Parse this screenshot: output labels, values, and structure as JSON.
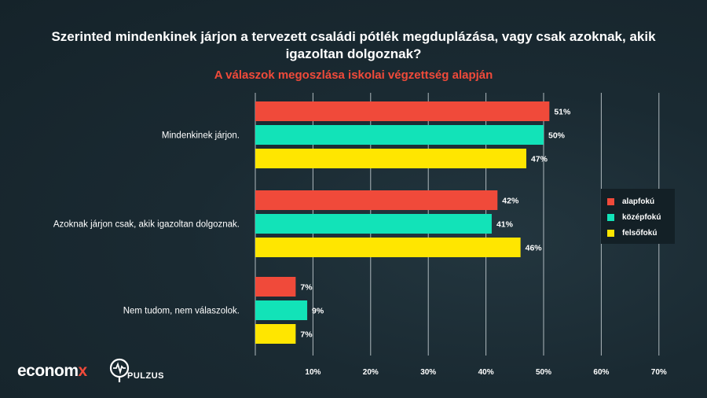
{
  "title_line1": "Szerinted mindenkinek járjon a tervezett családi pótlék megduplázása, vagy csak azoknak, akik",
  "title_line2": "igazoltan dolgoznak?",
  "subtitle": "A válaszok megoszlása iskolai végzettség alapján",
  "brand": {
    "econ_main": "econom",
    "econ_x": "x",
    "pulzus": "PULZUS"
  },
  "colors": {
    "alapfoku": "#f04a3a",
    "kozepfoku": "#12e3b8",
    "felsofoku": "#ffe600",
    "subtitle": "#f04a3a",
    "grid": "#c9d2d6"
  },
  "chart_data": {
    "type": "bar",
    "orientation": "horizontal",
    "categories": [
      "Mindenkinek járjon.",
      "Azoknak járjon csak, akik igazoltan dolgoznak.",
      "Nem tudom, nem válaszolok."
    ],
    "series": [
      {
        "name": "alapfokú",
        "values": [
          51,
          42,
          7
        ],
        "labels": [
          "51%",
          "42%",
          "7%"
        ]
      },
      {
        "name": "középfokú",
        "values": [
          50,
          41,
          9
        ],
        "labels": [
          "50%",
          "41%",
          "9%"
        ]
      },
      {
        "name": "felsőfokú",
        "values": [
          47,
          46,
          7
        ],
        "labels": [
          "47%",
          "46%",
          "7%"
        ]
      }
    ],
    "xlim": [
      0,
      70
    ],
    "xticks": [
      10,
      20,
      30,
      40,
      50,
      60,
      70
    ],
    "xtick_labels": [
      "10%",
      "20%",
      "30%",
      "40%",
      "50%",
      "60%",
      "70%"
    ],
    "grid": true,
    "legend_position": "right"
  }
}
